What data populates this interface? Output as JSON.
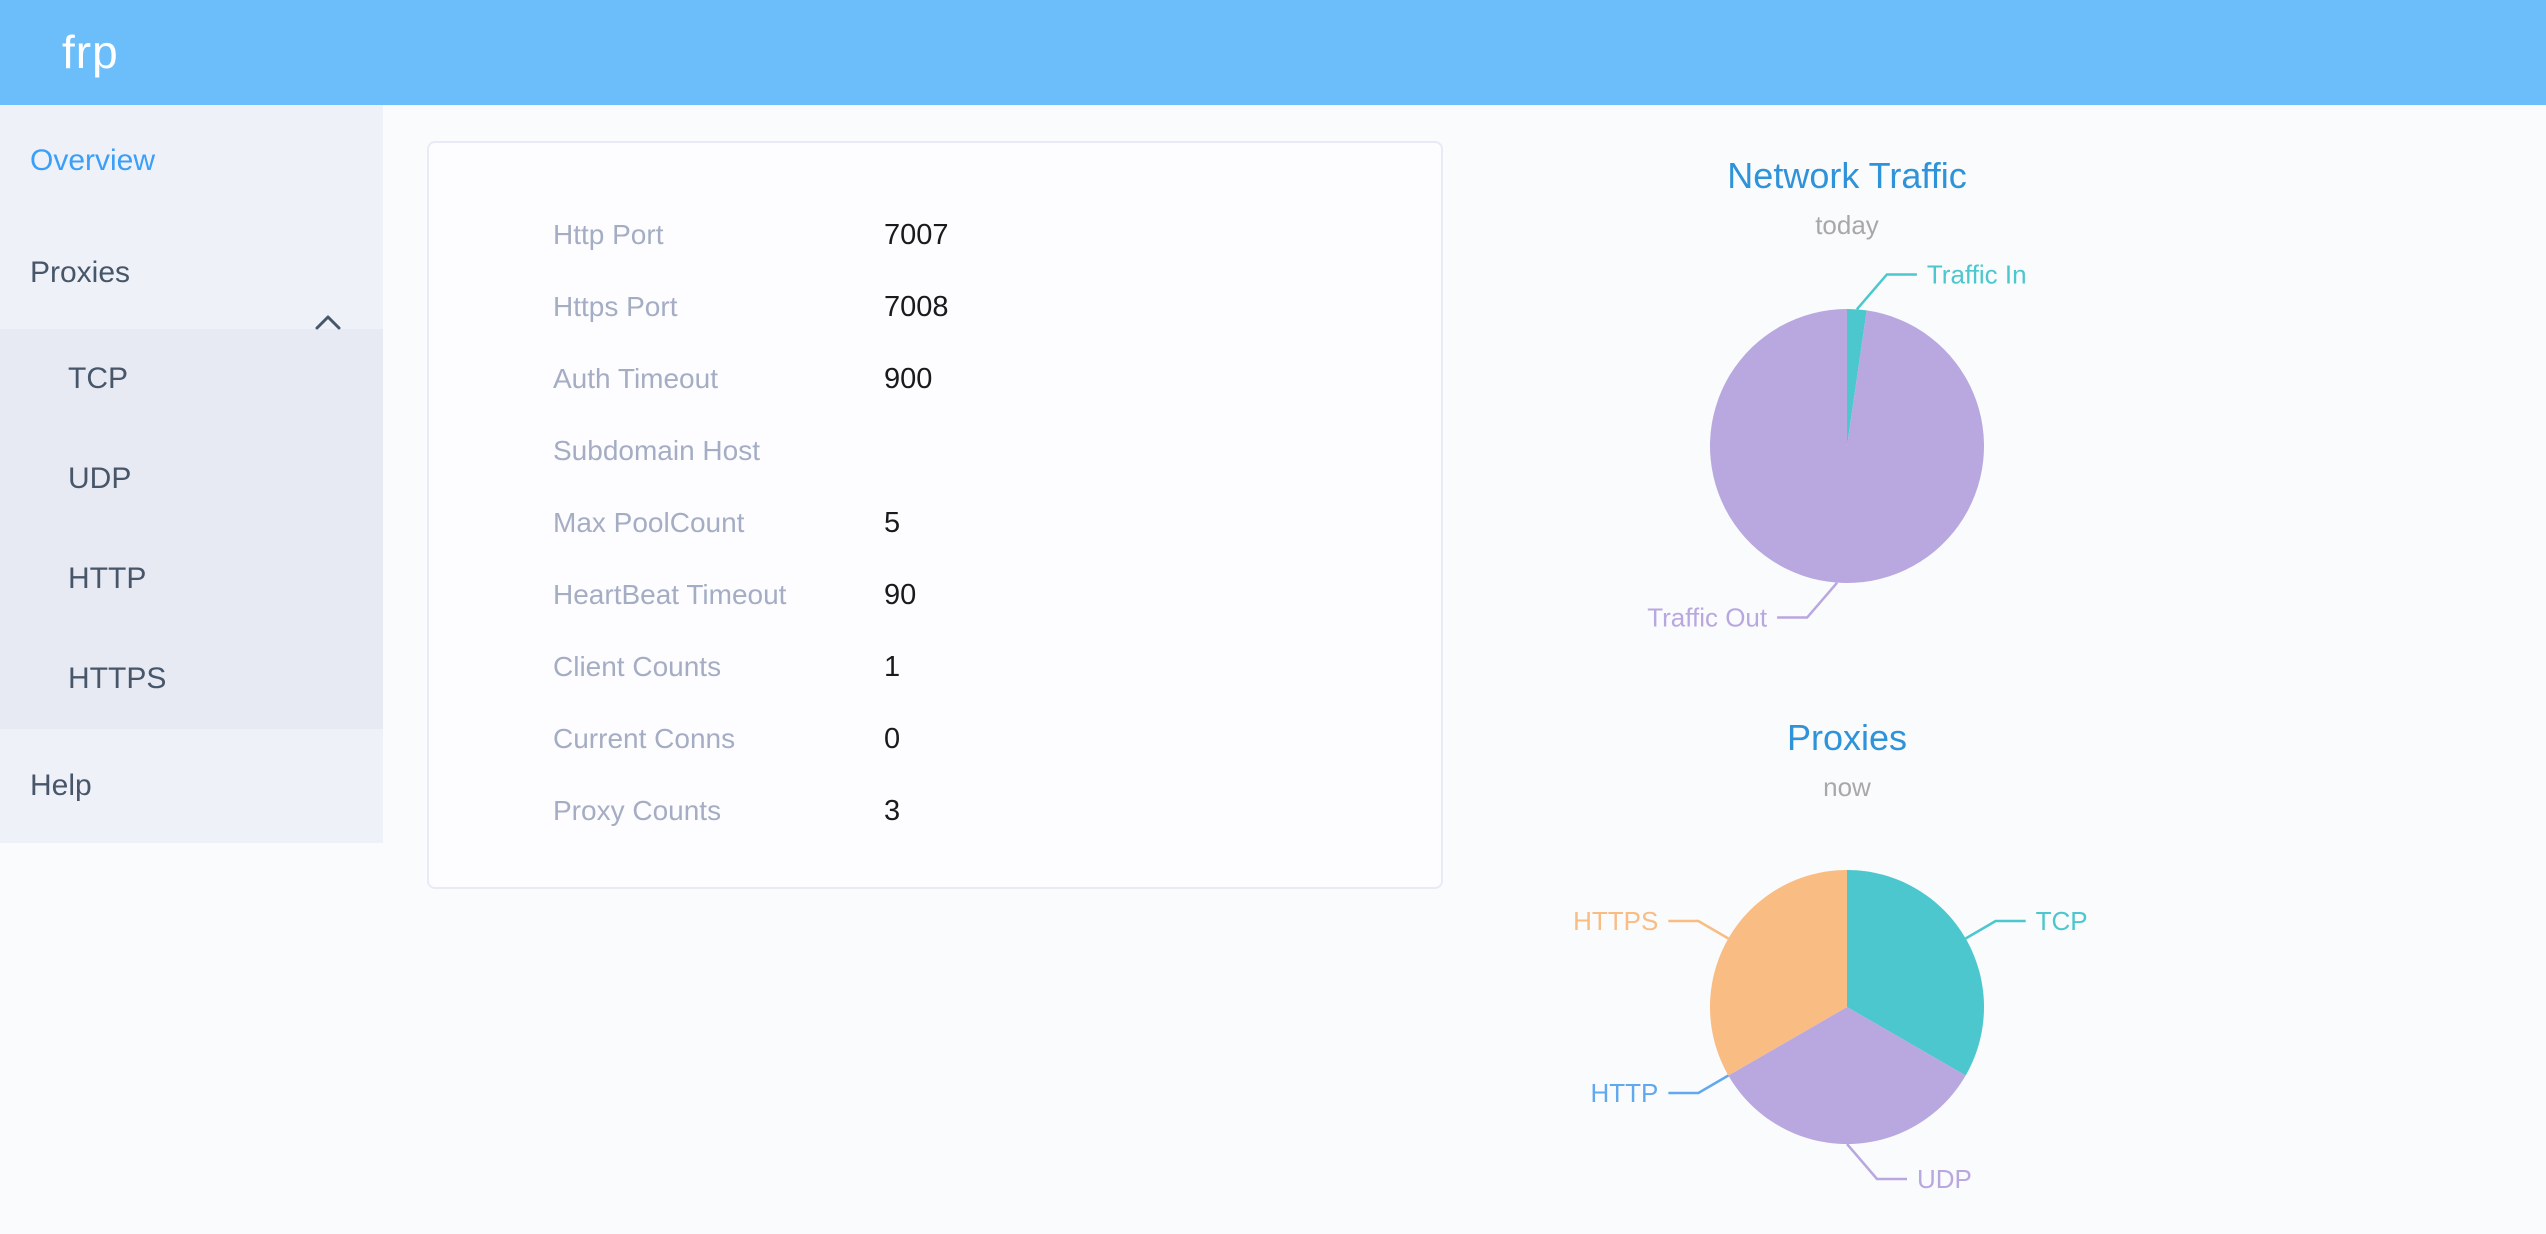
{
  "header": {
    "logo": "frp",
    "bar_color": "#6cbefb"
  },
  "sidebar": {
    "items": [
      {
        "label": "Overview",
        "active": true
      },
      {
        "label": "Proxies",
        "expanded": true,
        "children": [
          "TCP",
          "UDP",
          "HTTP",
          "HTTPS"
        ]
      },
      {
        "label": "Help"
      }
    ],
    "active_color": "#3b9ff8",
    "text_color": "#475669"
  },
  "overview": {
    "rows": [
      {
        "label": "Http Port",
        "value": "7007"
      },
      {
        "label": "Https Port",
        "value": "7008"
      },
      {
        "label": "Auth Timeout",
        "value": "900"
      },
      {
        "label": "Subdomain Host",
        "value": ""
      },
      {
        "label": "Max PoolCount",
        "value": "5"
      },
      {
        "label": "HeartBeat Timeout",
        "value": "90"
      },
      {
        "label": "Client Counts",
        "value": "1"
      },
      {
        "label": "Current Conns",
        "value": "0"
      },
      {
        "label": "Proxy Counts",
        "value": "3"
      }
    ]
  },
  "chart_data": [
    {
      "type": "pie",
      "title": "Network Traffic",
      "subtitle": "today",
      "legend_position": "callout-labels",
      "slices": [
        {
          "name": "Traffic In",
          "pct": 2.3,
          "color": "#4bc7cd"
        },
        {
          "name": "Traffic Out",
          "pct": 97.7,
          "color": "#b9a7e0"
        }
      ]
    },
    {
      "type": "pie",
      "title": "Proxies",
      "subtitle": "now",
      "legend_position": "callout-labels",
      "slices": [
        {
          "name": "TCP",
          "value": 1,
          "pct": 33.333,
          "color": "#4bc7cd"
        },
        {
          "name": "UDP",
          "value": 1,
          "pct": 33.333,
          "color": "#b9a7e0"
        },
        {
          "name": "HTTP",
          "value": 0,
          "pct": 0,
          "color": "#61a8ee"
        },
        {
          "name": "HTTPS",
          "value": 1,
          "pct": 33.333,
          "color": "#f9bc83"
        }
      ]
    }
  ]
}
